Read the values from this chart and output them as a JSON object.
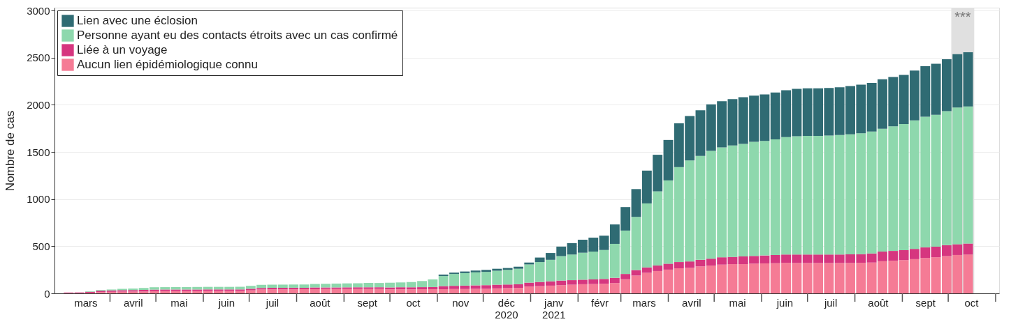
{
  "chart_data": {
    "type": "bar",
    "stacked": true,
    "ylabel": "Nombre de cas",
    "x": [
      "2020-03-05",
      "2020-03-12",
      "2020-03-19",
      "2020-03-26",
      "2020-04-02",
      "2020-04-09",
      "2020-04-16",
      "2020-04-23",
      "2020-04-30",
      "2020-05-07",
      "2020-05-14",
      "2020-05-21",
      "2020-05-28",
      "2020-06-04",
      "2020-06-11",
      "2020-06-18",
      "2020-06-25",
      "2020-07-02",
      "2020-07-09",
      "2020-07-16",
      "2020-07-23",
      "2020-07-30",
      "2020-08-06",
      "2020-08-13",
      "2020-08-20",
      "2020-08-27",
      "2020-09-03",
      "2020-09-10",
      "2020-09-17",
      "2020-09-24",
      "2020-10-01",
      "2020-10-08",
      "2020-10-15",
      "2020-10-22",
      "2020-10-29",
      "2020-11-05",
      "2020-11-12",
      "2020-11-19",
      "2020-11-26",
      "2020-12-03",
      "2020-12-10",
      "2020-12-17",
      "2020-12-24",
      "2020-12-31",
      "2021-01-07",
      "2021-01-14",
      "2021-01-21",
      "2021-01-28",
      "2021-02-04",
      "2021-02-11",
      "2021-02-18",
      "2021-02-25",
      "2021-03-04",
      "2021-03-11",
      "2021-03-18",
      "2021-03-25",
      "2021-04-01",
      "2021-04-08",
      "2021-04-15",
      "2021-04-22",
      "2021-04-29",
      "2021-05-06",
      "2021-05-13",
      "2021-05-20",
      "2021-05-27",
      "2021-06-03",
      "2021-06-10",
      "2021-06-17",
      "2021-06-24",
      "2021-07-01",
      "2021-07-08",
      "2021-07-15",
      "2021-07-22",
      "2021-07-29",
      "2021-08-05",
      "2021-08-12",
      "2021-08-19",
      "2021-08-26",
      "2021-09-02",
      "2021-09-09",
      "2021-09-16",
      "2021-09-23",
      "2021-09-30",
      "2021-10-07",
      "2021-10-14"
    ],
    "series": [
      {
        "name": "Aucun lien épidémiologique connu",
        "color": "#f57b95",
        "values": [
          3,
          3,
          7,
          14,
          16,
          18,
          19,
          21,
          23,
          24,
          24,
          24,
          24,
          25,
          25,
          25,
          25,
          32,
          40,
          42,
          42,
          43,
          44,
          45,
          46,
          46,
          46,
          47,
          47,
          47,
          43,
          43,
          43,
          44,
          44,
          44,
          46,
          46,
          48,
          48,
          53,
          56,
          58,
          73,
          77,
          82,
          87,
          92,
          97,
          99,
          102,
          109,
          150,
          189,
          218,
          237,
          252,
          266,
          271,
          286,
          295,
          305,
          310,
          310,
          315,
          318,
          320,
          324,
          322,
          322,
          322,
          322,
          322,
          322,
          324,
          327,
          341,
          346,
          353,
          363,
          375,
          383,
          395,
          407,
          412
        ]
      },
      {
        "name": "Liée à un voyage",
        "color": "#d6367f",
        "values": [
          7,
          7,
          10,
          14,
          15,
          16,
          16,
          16,
          17,
          17,
          17,
          17,
          17,
          17,
          17,
          17,
          17,
          17,
          17,
          17,
          17,
          17,
          16,
          17,
          17,
          17,
          18,
          18,
          18,
          18,
          20,
          22,
          22,
          22,
          23,
          33,
          34,
          36,
          37,
          39,
          39,
          38,
          39,
          41,
          44,
          46,
          49,
          48,
          48,
          49,
          51,
          56,
          56,
          58,
          58,
          58,
          63,
          66,
          68,
          70,
          73,
          78,
          77,
          82,
          82,
          84,
          87,
          88,
          90,
          90,
          90,
          90,
          90,
          92,
          92,
          97,
          102,
          104,
          105,
          109,
          112,
          113,
          116,
          114,
          116
        ]
      },
      {
        "name": "Personne ayant eu des contacts étroits avec un cas confirmé",
        "color": "#8ed8ad",
        "values": [
          0,
          0,
          5,
          8,
          10,
          14,
          16,
          21,
          25,
          25,
          26,
          26,
          27,
          27,
          27,
          27,
          28,
          31,
          33,
          33,
          34,
          34,
          35,
          37,
          39,
          41,
          42,
          43,
          45,
          45,
          50,
          51,
          56,
          65,
          81,
          107,
          126,
          133,
          138,
          141,
          148,
          155,
          164,
          193,
          211,
          228,
          259,
          272,
          286,
          295,
          307,
          360,
          460,
          564,
          678,
          787,
          883,
          1007,
          1070,
          1101,
          1143,
          1166,
          1182,
          1194,
          1211,
          1215,
          1227,
          1246,
          1254,
          1258,
          1258,
          1261,
          1268,
          1273,
          1281,
          1292,
          1303,
          1322,
          1338,
          1363,
          1387,
          1397,
          1421,
          1450,
          1455
        ]
      },
      {
        "name": "Lien avec une éclosion",
        "color": "#2f6b73",
        "values": [
          0,
          0,
          0,
          0,
          0,
          0,
          0,
          0,
          0,
          0,
          0,
          0,
          0,
          0,
          0,
          0,
          0,
          0,
          0,
          0,
          0,
          0,
          0,
          0,
          0,
          0,
          0,
          0,
          0,
          0,
          0,
          0,
          0,
          0,
          0,
          15,
          14,
          17,
          19,
          21,
          21,
          20,
          22,
          20,
          48,
          72,
          101,
          121,
          138,
          148,
          152,
          206,
          249,
          295,
          348,
          388,
          429,
          465,
          472,
          485,
          494,
          489,
          491,
          494,
          489,
          493,
          496,
          497,
          503,
          504,
          504,
          506,
          506,
          511,
          516,
          516,
          525,
          523,
          521,
          528,
          535,
          543,
          552,
          566,
          574
        ]
      }
    ],
    "xlim": [
      "2020-02-27",
      "2021-11-01"
    ],
    "xticks": [
      {
        "value": "2020-03-16",
        "label": "mars"
      },
      {
        "value": "2020-04-01",
        "label": null
      },
      {
        "value": "2020-04-16",
        "label": "avril"
      },
      {
        "value": "2020-05-01",
        "label": null
      },
      {
        "value": "2020-05-16",
        "label": "mai"
      },
      {
        "value": "2020-06-01",
        "label": null
      },
      {
        "value": "2020-06-16",
        "label": "juin"
      },
      {
        "value": "2020-07-01",
        "label": null
      },
      {
        "value": "2020-07-16",
        "label": "juil"
      },
      {
        "value": "2020-08-01",
        "label": null
      },
      {
        "value": "2020-08-16",
        "label": "août"
      },
      {
        "value": "2020-09-01",
        "label": null
      },
      {
        "value": "2020-09-16",
        "label": "sept"
      },
      {
        "value": "2020-10-01",
        "label": null
      },
      {
        "value": "2020-10-16",
        "label": "oct"
      },
      {
        "value": "2020-11-01",
        "label": null
      },
      {
        "value": "2020-11-16",
        "label": "nov"
      },
      {
        "value": "2020-12-01",
        "label": null
      },
      {
        "value": "2020-12-16",
        "label": "déc\n2020"
      },
      {
        "value": "2021-01-01",
        "label": null
      },
      {
        "value": "2021-01-16",
        "label": "janv\n2021"
      },
      {
        "value": "2021-02-01",
        "label": null
      },
      {
        "value": "2021-02-15",
        "label": "févr"
      },
      {
        "value": "2021-03-01",
        "label": null
      },
      {
        "value": "2021-03-16",
        "label": "mars"
      },
      {
        "value": "2021-04-01",
        "label": null
      },
      {
        "value": "2021-04-16",
        "label": "avril"
      },
      {
        "value": "2021-05-01",
        "label": null
      },
      {
        "value": "2021-05-16",
        "label": "mai"
      },
      {
        "value": "2021-06-01",
        "label": null
      },
      {
        "value": "2021-06-16",
        "label": "juin"
      },
      {
        "value": "2021-07-01",
        "label": null
      },
      {
        "value": "2021-07-16",
        "label": "juil"
      },
      {
        "value": "2021-08-01",
        "label": null
      },
      {
        "value": "2021-08-16",
        "label": "août"
      },
      {
        "value": "2021-09-01",
        "label": null
      },
      {
        "value": "2021-09-16",
        "label": "sept"
      },
      {
        "value": "2021-10-01",
        "label": null
      },
      {
        "value": "2021-10-16",
        "label": "oct"
      },
      {
        "value": "2021-11-01",
        "label": null
      }
    ],
    "ylim": [
      0,
      3030
    ],
    "yticks": [
      0,
      500,
      1000,
      1500,
      2000,
      2500,
      3000
    ],
    "bands": [
      {
        "axis": "x",
        "from": "2021-10-03",
        "to": "2021-10-18",
        "label": "***",
        "color": "#e0e0e0"
      }
    ],
    "grid": "y",
    "legend": "top left"
  }
}
